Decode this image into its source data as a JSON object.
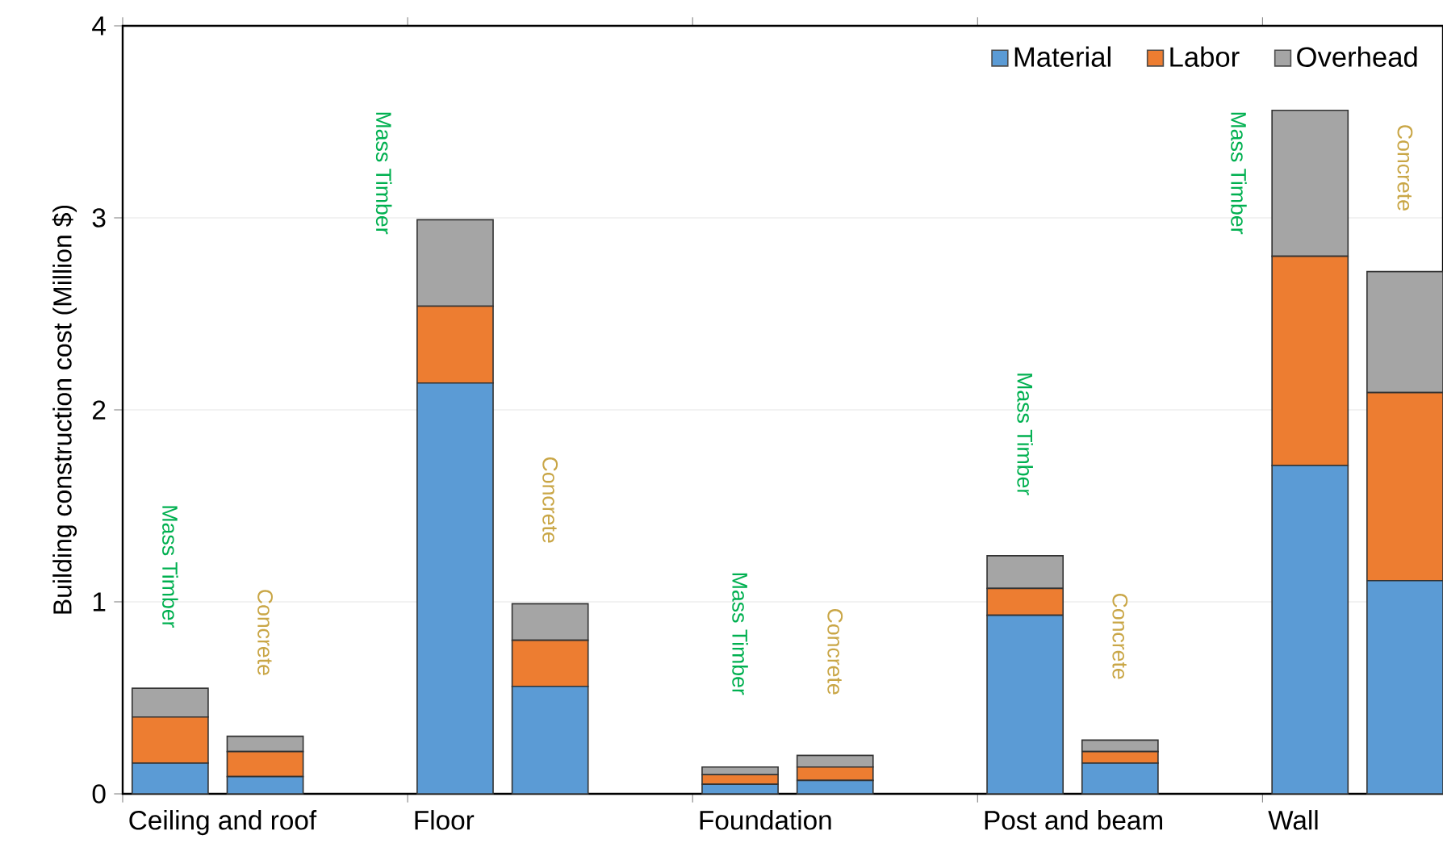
{
  "chart_data": {
    "type": "bar",
    "stacked": true,
    "ylabel": "Building construction cost (Million $)",
    "categories": [
      "Ceiling and roof",
      null,
      null,
      "Floor",
      null,
      null,
      "Foundation",
      null,
      null,
      "Post and beam",
      null,
      null,
      "Wall",
      null
    ],
    "series": [
      {
        "name": "Material",
        "color": "#5b9bd5",
        "values": [
          0.16,
          0.09,
          null,
          2.14,
          0.56,
          null,
          0.05,
          0.07,
          null,
          0.93,
          0.16,
          null,
          1.71,
          1.11
        ]
      },
      {
        "name": "Labor",
        "color": "#ed7d31",
        "values": [
          0.24,
          0.13,
          null,
          0.4,
          0.24,
          null,
          0.05,
          0.07,
          null,
          0.14,
          0.06,
          null,
          1.09,
          0.98
        ]
      },
      {
        "name": "Overhead",
        "color": "#a5a5a5",
        "values": [
          0.15,
          0.08,
          null,
          0.45,
          0.19,
          null,
          0.04,
          0.06,
          null,
          0.17,
          0.06,
          null,
          0.76,
          0.63
        ]
      }
    ],
    "ylim": [
      0,
      4
    ],
    "yticks": [
      0,
      1,
      2,
      3,
      4
    ],
    "grid": "y",
    "legend": "top right",
    "annotations": [
      "Mass Timber",
      "Concrete",
      "Mass Timber",
      "Concrete",
      "Mass Timber",
      "Concrete",
      "Mass Timber",
      "Concrete",
      "Mass Timber",
      "Concrete"
    ]
  }
}
